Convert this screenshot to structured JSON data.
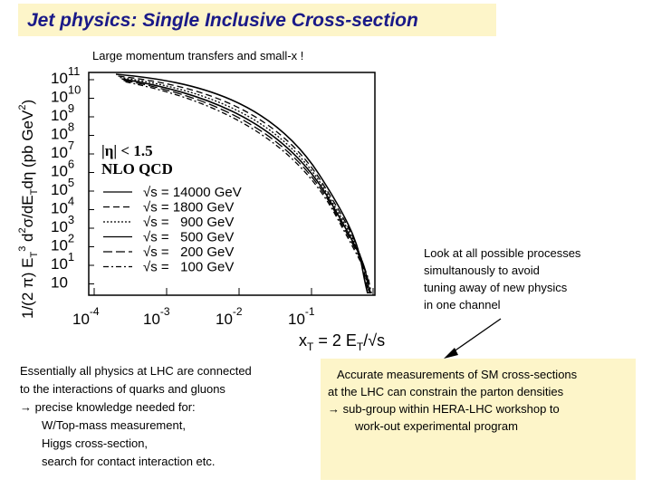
{
  "title": "Jet physics: Single Inclusive Cross-section",
  "subtitle": "Large momentum transfers and small-x !",
  "plot": {
    "ylabel": "1/(2 π) E_T^3 d²σ/dE_T dη (pb GeV²)",
    "ylabel_parts": {
      "a": "1/(2 π) E",
      "b": "T",
      "c": "3",
      "d": " d",
      "e": "2",
      "f": "σ/dE",
      "g": "T",
      "h": "dη (pb GeV",
      "i": "2",
      "j": ")"
    },
    "xlabel_parts": {
      "a": "x",
      "b": "T",
      "c": " = 2 E",
      "d": "T",
      "e": "/√s"
    },
    "y_ticks": [
      "11",
      "10",
      "9",
      "8",
      "7",
      "6",
      "5",
      "4",
      "3",
      "2",
      "1",
      ""
    ],
    "y_tick_base": "10",
    "x_ticks": [
      {
        "base": "10",
        "exp": "-4"
      },
      {
        "base": "10",
        "exp": "-3"
      },
      {
        "base": "10",
        "exp": "-2"
      },
      {
        "base": "10",
        "exp": "-1"
      }
    ],
    "cut_label": "|η| < 1.5",
    "model_label": "NLO QCD",
    "legend": [
      {
        "label": "√s = 14000 GeV",
        "style": "solid"
      },
      {
        "label": "√s = 1800 GeV",
        "style": "dashed"
      },
      {
        "label": "√s =   900 GeV",
        "style": "dotted"
      },
      {
        "label": "√s =   500 GeV",
        "style": "solid"
      },
      {
        "label": "√s =   200 GeV",
        "style": "longdash"
      },
      {
        "label": "√s =   100 GeV",
        "style": "dashdot"
      }
    ]
  },
  "side_note": [
    "Look at all possible processes",
    "simultanously to avoid",
    "tuning away of new physics",
    "in one channel"
  ],
  "left_text": [
    "Essentially all physics at LHC are connected",
    "to the interactions of quarks and gluons",
    "→ precise knowledge needed for:",
    "W/Top-mass measurement,",
    "Higgs cross-section,",
    "search for contact interaction etc."
  ],
  "right_text": [
    "Accurate measurements of SM cross-sections",
    "at the LHC can constrain the parton densities",
    "→ sub-group within HERA-LHC workshop to",
    "work-out experimental program"
  ],
  "colors": {
    "highlight_bg": "#fdf5c9",
    "title_color": "#1a1a88"
  }
}
